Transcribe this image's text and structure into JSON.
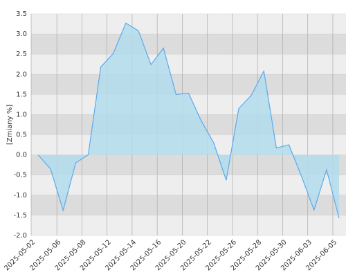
{
  "chart_data": {
    "type": "area",
    "y_label": "[Zmiany %]",
    "x": [
      0,
      1,
      2,
      3,
      4,
      5,
      6,
      7,
      8,
      9,
      10,
      11,
      12,
      13,
      14,
      15,
      16,
      17,
      18,
      19,
      20,
      21,
      22,
      23,
      24
    ],
    "series": [
      {
        "color": "#5aaaee",
        "fill": "#b3dcec",
        "values": [
          0,
          -0.35,
          -1.38,
          -0.2,
          0,
          2.18,
          2.52,
          3.27,
          3.08,
          2.24,
          2.65,
          1.5,
          1.53,
          0.85,
          0.3,
          -0.63,
          1.15,
          1.48,
          2.08,
          0.17,
          0.25,
          -0.53,
          -1.37,
          -0.37,
          -1.57
        ]
      }
    ],
    "xlim": [
      -0.55,
      24.55
    ],
    "xticks": [
      {
        "value": -0.55,
        "label": "2025-05-02"
      },
      {
        "value": 1.5,
        "label": "2025-05-06"
      },
      {
        "value": 3.5,
        "label": "2025-05-08"
      },
      {
        "value": 5.5,
        "label": "2025-05-12"
      },
      {
        "value": 7.5,
        "label": "2025-05-14"
      },
      {
        "value": 9.5,
        "label": "2025-05-16"
      },
      {
        "value": 11.5,
        "label": "2025-05-20"
      },
      {
        "value": 13.5,
        "label": "2025-05-22"
      },
      {
        "value": 15.5,
        "label": "2025-05-26"
      },
      {
        "value": 17.5,
        "label": "2025-05-28"
      },
      {
        "value": 19.5,
        "label": "2025-05-30"
      },
      {
        "value": 21.5,
        "label": "2025-06-03"
      },
      {
        "value": 23.5,
        "label": "2025-06-05"
      }
    ],
    "ylim": [
      -2,
      3.5
    ],
    "yticks": [
      {
        "value": -2,
        "label": "-2.0"
      },
      -1.5,
      {
        "value": -1,
        "label": "-1.0"
      },
      -0.5,
      {
        "value": 0,
        "label": "0.0"
      },
      0.5,
      {
        "value": 1,
        "label": "1.0"
      },
      1.5,
      {
        "value": 2,
        "label": "2.0"
      },
      2.5,
      {
        "value": 3,
        "label": "3.0"
      },
      3.5
    ],
    "grid": true
  }
}
